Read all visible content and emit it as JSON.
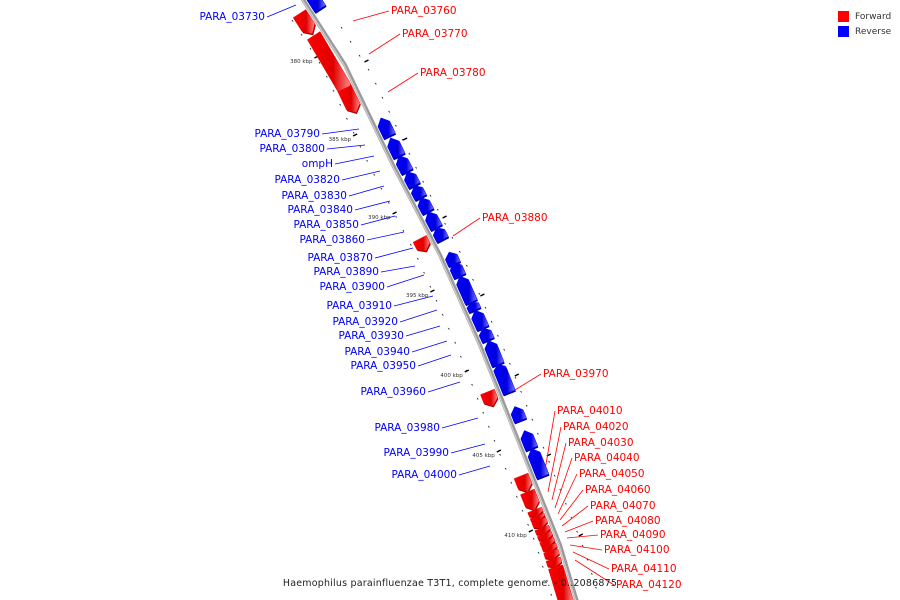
{
  "caption": "Haemophilus parainfluenzae T3T1, complete genome. - 0..2086875",
  "legend": [
    {
      "label": "Forward",
      "color": "#ff0000"
    },
    {
      "label": "Reverse",
      "color": "#0000ff"
    }
  ],
  "colors": {
    "forward": "#ff0000",
    "reverse": "#0000ff",
    "backbone": "#9a9a9a"
  },
  "scale_unit": "kbp",
  "scale_ticks": [
    380,
    385,
    390,
    395,
    400,
    405,
    410
  ],
  "genes": [
    {
      "name": "PARA_03730",
      "strand": "reverse"
    },
    {
      "name": "PARA_03760",
      "strand": "forward"
    },
    {
      "name": "PARA_03770",
      "strand": "forward"
    },
    {
      "name": "PARA_03780",
      "strand": "forward"
    },
    {
      "name": "PARA_03790",
      "strand": "reverse"
    },
    {
      "name": "PARA_03800",
      "strand": "reverse"
    },
    {
      "name": "ompH",
      "strand": "reverse"
    },
    {
      "name": "PARA_03820",
      "strand": "reverse"
    },
    {
      "name": "PARA_03830",
      "strand": "reverse"
    },
    {
      "name": "PARA_03840",
      "strand": "reverse"
    },
    {
      "name": "PARA_03850",
      "strand": "reverse"
    },
    {
      "name": "PARA_03860",
      "strand": "reverse"
    },
    {
      "name": "PARA_03870",
      "strand": "reverse"
    },
    {
      "name": "PARA_03880",
      "strand": "forward"
    },
    {
      "name": "PARA_03890",
      "strand": "reverse"
    },
    {
      "name": "PARA_03900",
      "strand": "reverse"
    },
    {
      "name": "PARA_03910",
      "strand": "reverse"
    },
    {
      "name": "PARA_03920",
      "strand": "reverse"
    },
    {
      "name": "PARA_03930",
      "strand": "reverse"
    },
    {
      "name": "PARA_03940",
      "strand": "reverse"
    },
    {
      "name": "PARA_03950",
      "strand": "reverse"
    },
    {
      "name": "PARA_03960",
      "strand": "reverse"
    },
    {
      "name": "PARA_03970",
      "strand": "forward"
    },
    {
      "name": "PARA_03980",
      "strand": "reverse"
    },
    {
      "name": "PARA_03990",
      "strand": "reverse"
    },
    {
      "name": "PARA_04000",
      "strand": "reverse"
    },
    {
      "name": "PARA_04010",
      "strand": "forward"
    },
    {
      "name": "PARA_04020",
      "strand": "forward"
    },
    {
      "name": "PARA_04030",
      "strand": "forward"
    },
    {
      "name": "PARA_04040",
      "strand": "forward"
    },
    {
      "name": "PARA_04050",
      "strand": "forward"
    },
    {
      "name": "PARA_04060",
      "strand": "forward"
    },
    {
      "name": "PARA_04070",
      "strand": "forward"
    },
    {
      "name": "PARA_04080",
      "strand": "forward"
    },
    {
      "name": "PARA_04090",
      "strand": "forward"
    },
    {
      "name": "PARA_04100",
      "strand": "forward"
    },
    {
      "name": "PARA_04110",
      "strand": "forward"
    },
    {
      "name": "PARA_04120",
      "strand": "forward"
    }
  ]
}
